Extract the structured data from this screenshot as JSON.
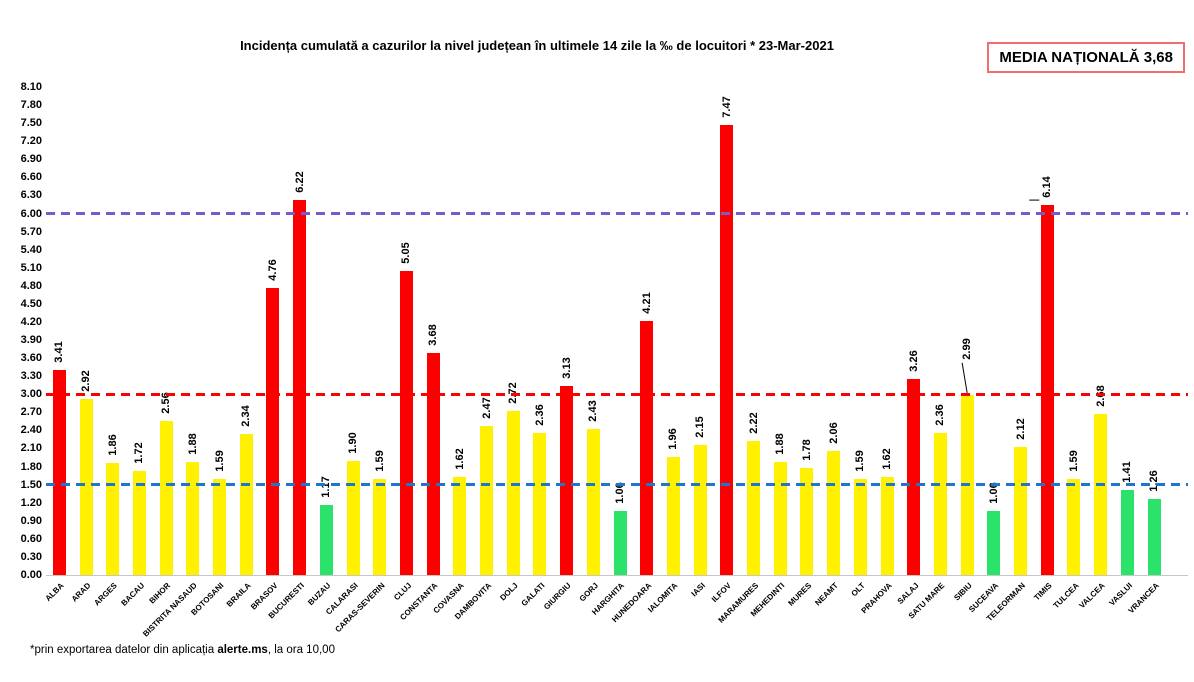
{
  "title": "Incidența cumulată a cazurilor la nivel județean în ultimele 14 zile la ‰ de locuitori *  23-Mar-2021",
  "media_box_label": "MEDIA NAȚIONALĂ 3,68",
  "footnote": {
    "prefix": "*prin exportarea datelor din aplicația ",
    "bold": "alerte.ms",
    "suffix": ", la ora 10,00"
  },
  "chart_data": {
    "type": "bar",
    "title": "Incidența cumulată a cazurilor la nivel județean în ultimele 14 zile la ‰ de locuitori * 23-Mar-2021",
    "xlabel": "",
    "ylabel": "",
    "ylim": [
      0,
      8.1
    ],
    "ytick_step": 0.3,
    "grid": false,
    "legend": "none",
    "national_average": 3.68,
    "categories": [
      "ALBA",
      "ARAD",
      "ARGES",
      "BACAU",
      "BIHOR",
      "BISTRITA NASAUD",
      "BOTOSANI",
      "BRAILA",
      "BRASOV",
      "BUCURESTI",
      "BUZAU",
      "CALARASI",
      "CARAS-SEVERIN",
      "CLUJ",
      "CONSTANTA",
      "COVASNA",
      "DAMBOVITA",
      "DOLJ",
      "GALATI",
      "GIURGIU",
      "GORJ",
      "HARGHITA",
      "HUNEDOARA",
      "IALOMITA",
      "IASI",
      "ILFOV",
      "MARAMURES",
      "MEHEDINTI",
      "MURES",
      "NEAMT",
      "OLT",
      "PRAHOVA",
      "SALAJ",
      "SATU MARE",
      "SIBIU",
      "SUCEAVA",
      "TELEORMAN",
      "TIMIS",
      "TULCEA",
      "VALCEA",
      "VASLUI",
      "VRANCEA"
    ],
    "values": [
      3.41,
      2.92,
      1.86,
      1.72,
      2.56,
      1.88,
      1.59,
      2.34,
      4.76,
      6.22,
      1.17,
      1.9,
      1.59,
      5.05,
      3.68,
      1.62,
      2.47,
      2.72,
      2.36,
      3.13,
      2.43,
      1.06,
      4.21,
      1.96,
      2.15,
      7.47,
      2.22,
      1.88,
      1.78,
      2.06,
      1.59,
      1.62,
      3.26,
      2.36,
      2.99,
      1.06,
      2.12,
      6.14,
      1.59,
      2.68,
      1.41,
      1.26
    ],
    "display_values": [
      "3.41",
      "2.92",
      "1.86",
      "1.72",
      "2.56",
      "1.88",
      "1.59",
      "2.34",
      "4.76",
      "6.22",
      "1.17",
      "1.90",
      "1.59",
      "5.05",
      "3.68",
      "1.62",
      "2.47",
      "2.72",
      "2.36",
      "3.13",
      "2.43",
      "1.06",
      "4.21",
      "1.96",
      "2.15",
      "7.47",
      "2.22",
      "1.88",
      "1.78",
      "2.06",
      "1.59",
      "1.62",
      "3.26",
      "2.36",
      "2.99",
      "1.06",
      "2.12",
      "6.14",
      "1.59",
      "2.68",
      "1.41",
      "1.26"
    ],
    "bar_color_class": [
      "red",
      "yellow",
      "yellow",
      "yellow",
      "yellow",
      "yellow",
      "yellow",
      "yellow",
      "red",
      "red",
      "green",
      "yellow",
      "yellow",
      "red",
      "red",
      "yellow",
      "yellow",
      "yellow",
      "yellow",
      "red",
      "yellow",
      "green",
      "red",
      "yellow",
      "yellow",
      "red",
      "yellow",
      "yellow",
      "yellow",
      "yellow",
      "yellow",
      "yellow",
      "red",
      "yellow",
      "yellow",
      "green",
      "yellow",
      "red",
      "yellow",
      "yellow",
      "green",
      "green"
    ],
    "colors": {
      "red": "#fc0000",
      "yellow": "#fff100",
      "green": "#2be36a"
    },
    "reference_lines": [
      {
        "value": 6.0,
        "color": "#7a5bc8",
        "style": "dashed"
      },
      {
        "value": 3.0,
        "color": "#ff0000",
        "style": "dashed"
      },
      {
        "value": 1.5,
        "color": "#1e76ce",
        "style": "dashed"
      }
    ],
    "callouts": {
      "34": {
        "type": "diagonal-leader",
        "raise": 28
      },
      "37": {
        "type": "horizontal-dash",
        "raise": 0
      }
    }
  }
}
